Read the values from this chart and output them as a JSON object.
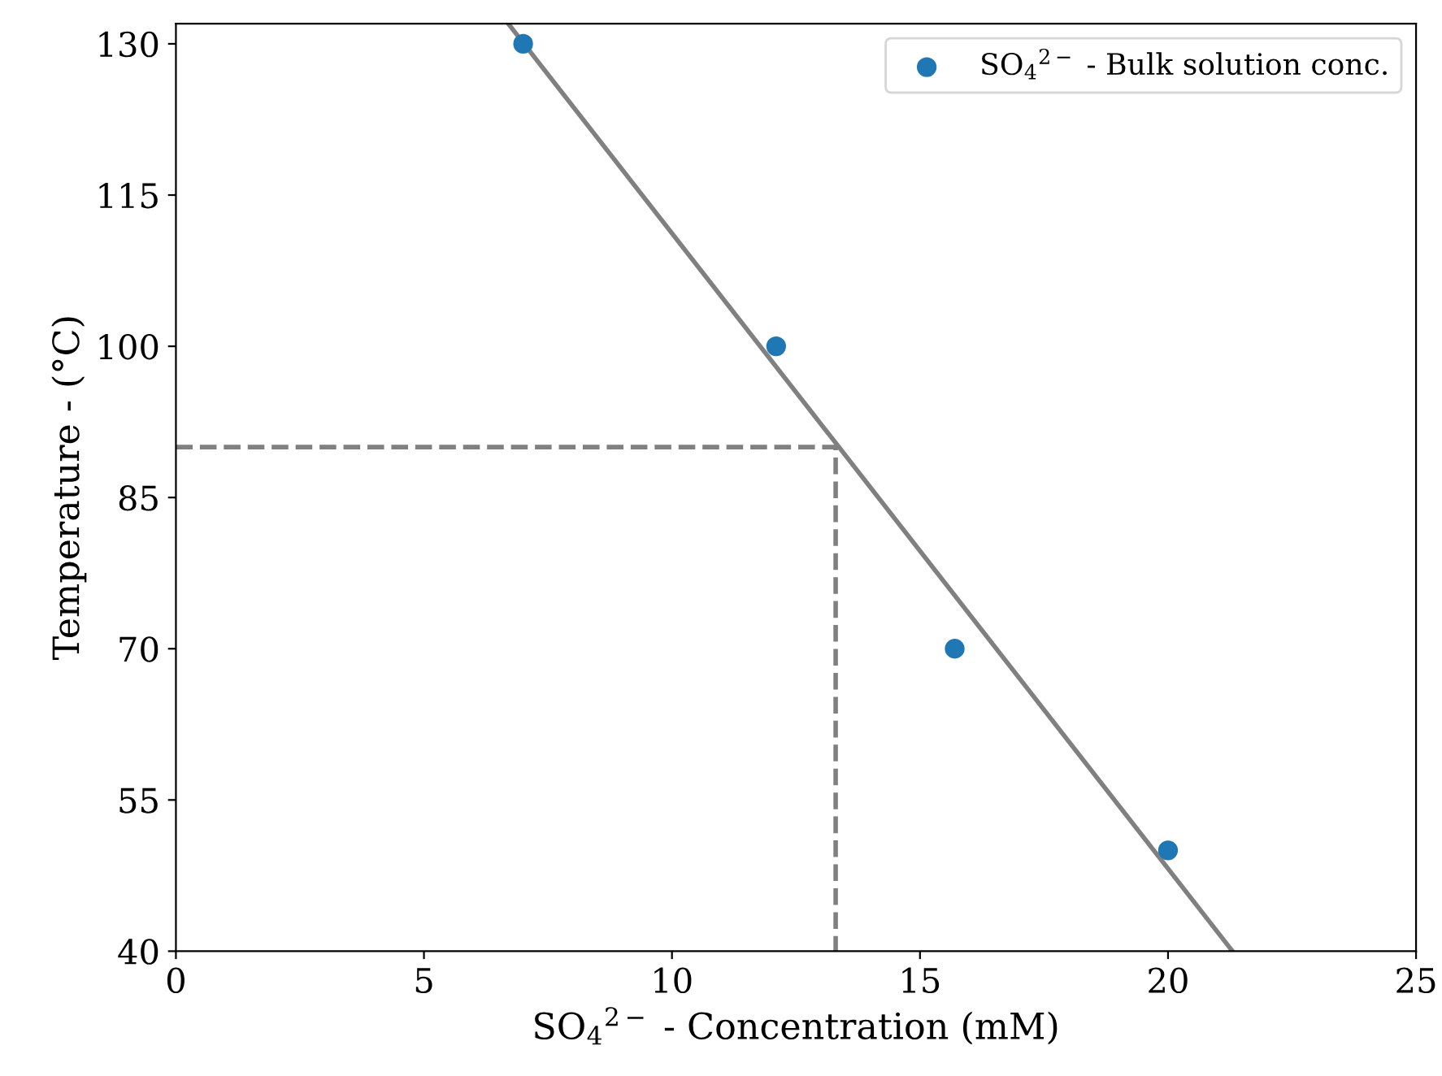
{
  "chart_data": {
    "type": "scatter",
    "xlabel": "SO$_{4}$$^{2−}$ - Concentration (mM)",
    "ylabel": "Temperature - (°C)",
    "xlim": [
      0,
      25
    ],
    "xticks": [
      0,
      5,
      10,
      15,
      20,
      25
    ],
    "ylim": [
      40,
      132
    ],
    "yticks": [
      40,
      55,
      70,
      85,
      100,
      115,
      130
    ],
    "grid": false,
    "legend": "top right",
    "series": [
      {
        "name": "SO$_{4}$$^{2−}$ - Bulk solution conc.",
        "color": "#1f77b4",
        "marker": "circle",
        "x": [
          7,
          12.1,
          15.7,
          20
        ],
        "values": [
          130,
          100,
          70,
          50
        ]
      },
      {
        "type": "line",
        "color": "#808080",
        "line_style": "solid",
        "marker": "none",
        "x": [
          6.7,
          21.3
        ],
        "values": [
          132,
          40
        ]
      },
      {
        "type": "line",
        "color": "#808080",
        "line_style": "dashed",
        "marker": "none",
        "x": [
          0,
          13.3,
          13.3
        ],
        "values": [
          90,
          90,
          40
        ]
      }
    ]
  }
}
